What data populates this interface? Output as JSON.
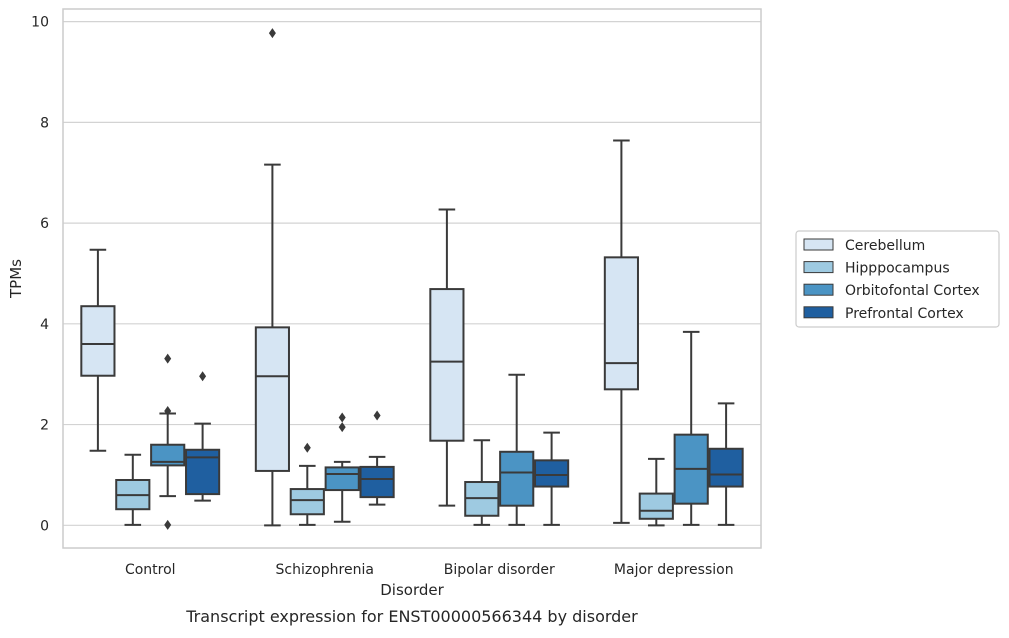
{
  "caption": "Transcript expression for ENST00000566344 by disorder",
  "colors": {
    "Cerebellum": "#d6e5f3",
    "Hipppocampus": "#9ecae1",
    "Orbitofontal Cortex": "#4b94c4",
    "Prefrontal Cortex": "#1f5fa0",
    "edge": "#3a3a3a",
    "grid": "#d3d3d3"
  },
  "chart_data": {
    "type": "box",
    "title": "",
    "xlabel": "Disorder",
    "ylabel": "TPMs",
    "ylim": [
      -0.45,
      10.25
    ],
    "yticks": [
      0,
      2,
      4,
      6,
      8,
      10
    ],
    "ytick_labels": [
      "0",
      "2",
      "4",
      "6",
      "8",
      "10"
    ],
    "grid": true,
    "legend_position": "right",
    "categories": [
      "Control",
      "Schizophrenia",
      "Bipolar disorder",
      "Major depression"
    ],
    "series": [
      {
        "name": "Cerebellum",
        "boxes": [
          {
            "min": 1.48,
            "q1": 2.97,
            "median": 3.6,
            "q3": 4.35,
            "max": 5.47,
            "outliers": []
          },
          {
            "min": 0.0,
            "q1": 1.08,
            "median": 2.96,
            "q3": 3.93,
            "max": 7.16,
            "outliers": [
              9.77
            ]
          },
          {
            "min": 0.39,
            "q1": 1.68,
            "median": 3.25,
            "q3": 4.69,
            "max": 6.27,
            "outliers": []
          },
          {
            "min": 0.05,
            "q1": 2.7,
            "median": 3.22,
            "q3": 5.32,
            "max": 7.64,
            "outliers": []
          }
        ]
      },
      {
        "name": "Hipppocampus",
        "boxes": [
          {
            "min": 0.01,
            "q1": 0.32,
            "median": 0.6,
            "q3": 0.9,
            "max": 1.4,
            "outliers": []
          },
          {
            "min": 0.01,
            "q1": 0.22,
            "median": 0.5,
            "q3": 0.72,
            "max": 1.18,
            "outliers": [
              1.54
            ]
          },
          {
            "min": 0.01,
            "q1": 0.19,
            "median": 0.54,
            "q3": 0.86,
            "max": 1.69,
            "outliers": []
          },
          {
            "min": 0.0,
            "q1": 0.13,
            "median": 0.29,
            "q3": 0.63,
            "max": 1.32,
            "outliers": []
          }
        ]
      },
      {
        "name": "Orbitofontal Cortex",
        "boxes": [
          {
            "min": 0.58,
            "q1": 1.19,
            "median": 1.26,
            "q3": 1.6,
            "max": 2.22,
            "outliers": [
              3.31,
              2.27,
              0.01
            ]
          },
          {
            "min": 0.07,
            "q1": 0.7,
            "median": 1.02,
            "q3": 1.15,
            "max": 1.26,
            "outliers": [
              2.14,
              1.95
            ]
          },
          {
            "min": 0.01,
            "q1": 0.39,
            "median": 1.05,
            "q3": 1.46,
            "max": 2.99,
            "outliers": []
          },
          {
            "min": 0.01,
            "q1": 0.43,
            "median": 1.12,
            "q3": 1.8,
            "max": 3.84,
            "outliers": []
          }
        ]
      },
      {
        "name": "Prefrontal Cortex",
        "boxes": [
          {
            "min": 0.49,
            "q1": 0.62,
            "median": 1.35,
            "q3": 1.5,
            "max": 2.02,
            "outliers": [
              2.96
            ]
          },
          {
            "min": 0.41,
            "q1": 0.56,
            "median": 0.92,
            "q3": 1.16,
            "max": 1.36,
            "outliers": [
              2.18
            ]
          },
          {
            "min": 0.01,
            "q1": 0.77,
            "median": 1.0,
            "q3": 1.29,
            "max": 1.84,
            "outliers": []
          },
          {
            "min": 0.01,
            "q1": 0.77,
            "median": 1.01,
            "q3": 1.52,
            "max": 2.42,
            "outliers": []
          }
        ]
      }
    ]
  }
}
